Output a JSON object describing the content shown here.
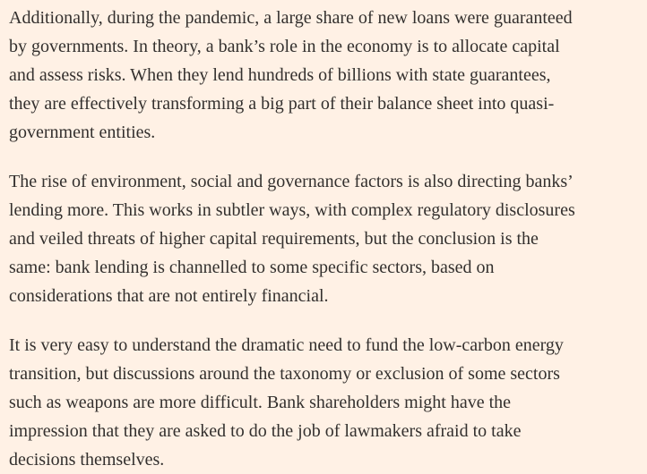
{
  "article": {
    "paragraphs": [
      {
        "lines": [
          "Additionally, during the pandemic, a large share of new loans were guaranteed",
          "by governments. In theory, a bank’s role in the economy is to allocate capital",
          "and assess risks. When they lend hundreds of billions with state guarantees,",
          "they are effectively transforming a big part of their balance sheet into quasi-",
          "government entities."
        ]
      },
      {
        "lines": [
          "The rise of environment, social and governance factors is also directing banks’",
          "lending more. This works in subtler ways, with complex regulatory disclosures",
          "and veiled threats of higher capital requirements, but the conclusion is the",
          "same: bank lending is channelled to some specific sectors, based on",
          "considerations that are not entirely financial."
        ]
      },
      {
        "lines": [
          "It is very easy to understand the dramatic need to fund the low-carbon energy",
          "transition, but discussions around the taxonomy or exclusion of some sectors",
          "such as weapons are more difficult. Bank shareholders might have the",
          "impression that they are asked to do the job of lawmakers afraid to take",
          "decisions themselves."
        ]
      }
    ]
  }
}
